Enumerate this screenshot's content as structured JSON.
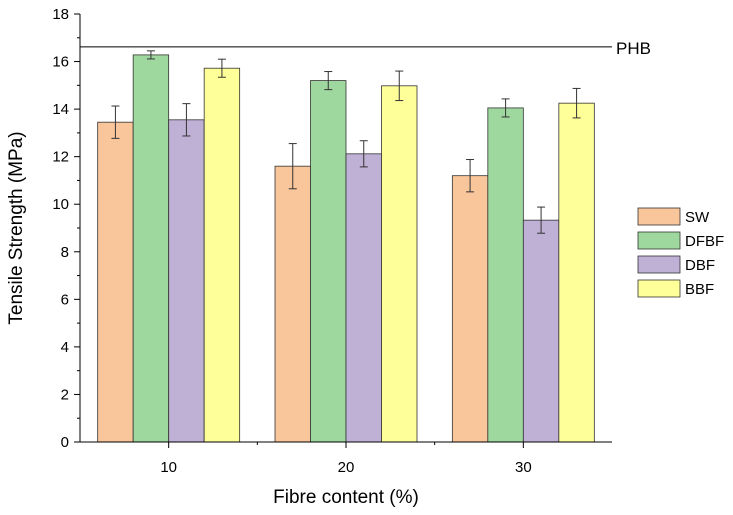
{
  "chart_data": {
    "type": "bar",
    "xlabel": "Fibre content (%)",
    "ylabel": "Tensile Strength (MPa)",
    "categories": [
      "10",
      "20",
      "30"
    ],
    "ylim": [
      0,
      18
    ],
    "yticks": [
      0,
      2,
      4,
      6,
      8,
      10,
      12,
      14,
      16,
      18
    ],
    "series": [
      {
        "name": "SW",
        "color": "#f9c59a",
        "values": [
          13.45,
          11.6,
          11.2
        ],
        "errors": [
          0.68,
          0.95,
          0.68
        ]
      },
      {
        "name": "DFBF",
        "color": "#9ed89e",
        "values": [
          16.28,
          15.2,
          14.05
        ],
        "errors": [
          0.17,
          0.38,
          0.38
        ]
      },
      {
        "name": "DBF",
        "color": "#bfb0d6",
        "values": [
          13.55,
          12.12,
          9.33
        ],
        "errors": [
          0.68,
          0.55,
          0.55
        ]
      },
      {
        "name": "BBF",
        "color": "#ffff99",
        "values": [
          15.72,
          14.98,
          14.25
        ],
        "errors": [
          0.38,
          0.62,
          0.62
        ]
      }
    ],
    "reference_line": {
      "label": "PHB",
      "value": 16.62
    },
    "legend_position": "right"
  }
}
